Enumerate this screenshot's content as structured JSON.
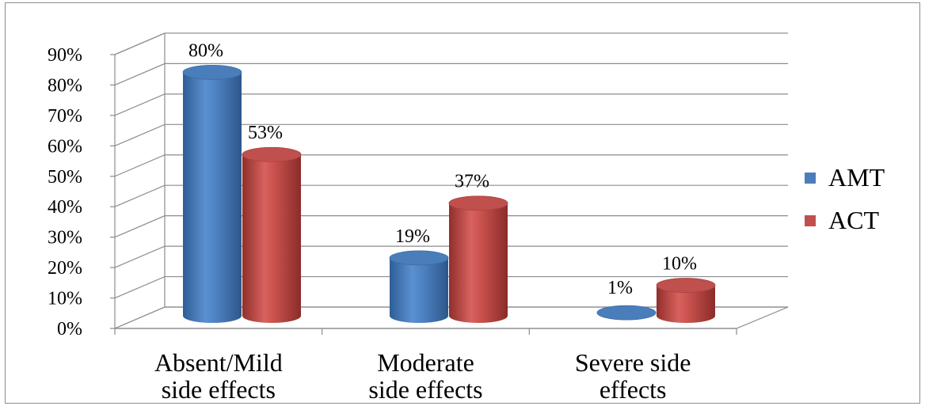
{
  "chart_data": {
    "type": "bar",
    "style": "3d-cylinder",
    "categories": [
      "Absent/Mild side effects",
      "Moderate side effects",
      "Severe side effects"
    ],
    "category_lines": [
      [
        "Absent/Mild",
        "side effects"
      ],
      [
        "Moderate",
        "side effects"
      ],
      [
        "Severe side",
        "effects"
      ]
    ],
    "series": [
      {
        "name": "AMT",
        "values": [
          80,
          19,
          1
        ],
        "labels": [
          "80%",
          "19%",
          "1%"
        ],
        "color": "#4a7ebb"
      },
      {
        "name": "ACT",
        "values": [
          53,
          37,
          10
        ],
        "labels": [
          "53%",
          "37%",
          "10%"
        ],
        "color": "#c0504d"
      }
    ],
    "y_ticks": [
      "0%",
      "10%",
      "20%",
      "30%",
      "40%",
      "50%",
      "60%",
      "70%",
      "80%",
      "90%"
    ],
    "ylim": [
      0,
      90
    ],
    "grid": true,
    "legend_position": "right"
  }
}
